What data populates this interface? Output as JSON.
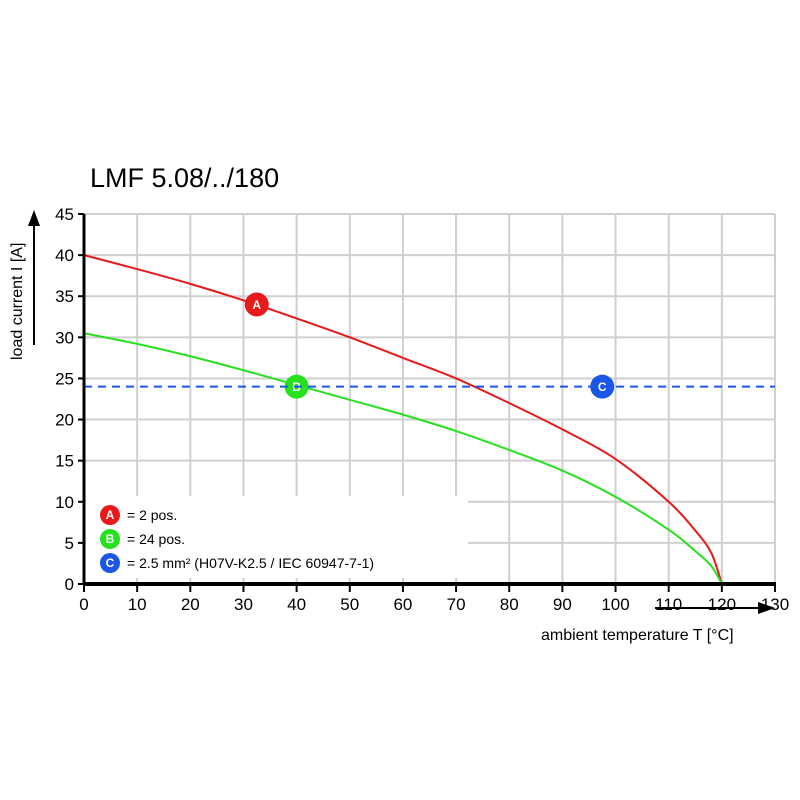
{
  "chart_data": {
    "type": "line",
    "title": "LMF 5.08/../180",
    "xlabel": "ambient temperature T [°C]",
    "ylabel": "load current I [A]",
    "xlim": [
      0,
      130
    ],
    "ylim": [
      0,
      45
    ],
    "xticks": [
      0,
      10,
      20,
      30,
      40,
      50,
      60,
      70,
      80,
      90,
      100,
      110,
      120,
      130
    ],
    "yticks": [
      0,
      5,
      10,
      15,
      20,
      25,
      30,
      35,
      40,
      45
    ],
    "grid": true,
    "legend_position": "bottom-left",
    "series": [
      {
        "name": "A",
        "legend": "= 2 pos.",
        "color": "#e8191b",
        "marker_x": 32.5,
        "marker_y": 34,
        "points": [
          [
            0,
            40
          ],
          [
            10,
            38.3
          ],
          [
            20,
            36.5
          ],
          [
            30,
            34.5
          ],
          [
            40,
            32.3
          ],
          [
            50,
            30
          ],
          [
            60,
            27.5
          ],
          [
            70,
            25
          ],
          [
            80,
            22
          ],
          [
            90,
            18.8
          ],
          [
            100,
            15.2
          ],
          [
            110,
            10
          ],
          [
            115,
            6.5
          ],
          [
            118,
            3.8
          ],
          [
            120,
            0
          ]
        ]
      },
      {
        "name": "B",
        "legend": "= 24 pos.",
        "color": "#27e11e",
        "marker_x": 40,
        "marker_y": 24,
        "points": [
          [
            0,
            30.5
          ],
          [
            10,
            29.2
          ],
          [
            20,
            27.7
          ],
          [
            30,
            26
          ],
          [
            40,
            24.2
          ],
          [
            50,
            22.4
          ],
          [
            60,
            20.6
          ],
          [
            70,
            18.6
          ],
          [
            80,
            16.3
          ],
          [
            90,
            13.8
          ],
          [
            100,
            10.6
          ],
          [
            110,
            6.6
          ],
          [
            115,
            4
          ],
          [
            118,
            2.2
          ],
          [
            120,
            0
          ]
        ]
      },
      {
        "name": "C",
        "legend": "= 2.5 mm² (H07V-K2.5 / IEC 60947-7-1)",
        "color": "#1a56e8",
        "marker_x": 97.5,
        "marker_y": 24,
        "dashed": true,
        "points": [
          [
            0,
            24
          ],
          [
            130,
            24
          ]
        ]
      }
    ]
  }
}
